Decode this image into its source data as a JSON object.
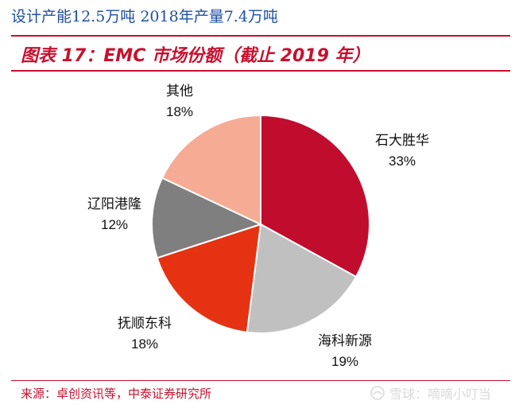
{
  "header": {
    "title": "设计产能12.5万吨 2018年产量7.4万吨"
  },
  "figure": {
    "title": "图表 17：EMC 市场份额（截止 2019 年）"
  },
  "colors": {
    "accent": "#c8102e",
    "header_blue": "#1f4fa3"
  },
  "chart_data": {
    "type": "pie",
    "title": "图表 17：EMC 市场份额（截止 2019 年）",
    "slices": [
      {
        "name": "石大胜华",
        "value": 33,
        "label": "33%",
        "color": "#c00d2e"
      },
      {
        "name": "海科新源",
        "value": 19,
        "label": "19%",
        "color": "#c0c0c0"
      },
      {
        "name": "抚顺东科",
        "value": 18,
        "label": "18%",
        "color": "#e53212"
      },
      {
        "name": "辽阳港隆",
        "value": 12,
        "label": "12%",
        "color": "#7f7f7f"
      },
      {
        "name": "其他",
        "value": 18,
        "label": "18%",
        "color": "#f6ab94"
      }
    ]
  },
  "footer": {
    "source": "来源：卓创资讯等，中泰证券研究所"
  },
  "watermark": {
    "text": "雪球：嘀嘀小叮当",
    "icon": "snowball-icon"
  }
}
